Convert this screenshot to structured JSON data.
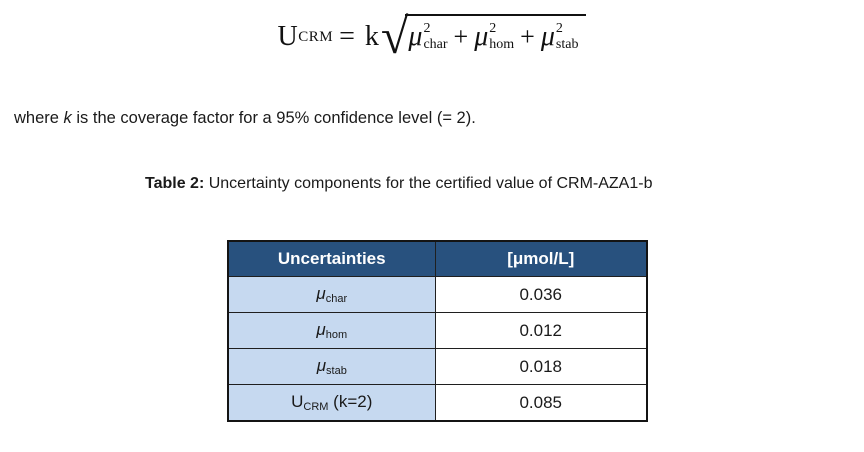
{
  "formula": {
    "lhs_base": "U",
    "lhs_sub": "CRM",
    "equals": "=",
    "coeff": "k",
    "radical_sign": "√",
    "operator": "+",
    "terms": [
      {
        "base": "μ",
        "sup": "2",
        "sub": "char"
      },
      {
        "base": "μ",
        "sup": "2",
        "sub": "hom"
      },
      {
        "base": "μ",
        "sup": "2",
        "sub": "stab"
      }
    ]
  },
  "paragraph": {
    "before_k": "where ",
    "k": "k",
    "after_k": " is the coverage factor for a 95% confidence level (= 2)."
  },
  "caption": {
    "label": "Table 2:",
    "text": " Uncertainty components for the certified value of CRM-AZA1-b"
  },
  "table": {
    "header": [
      "Uncertainties",
      "[μmol/L]"
    ],
    "rows": [
      {
        "label_base": "μ",
        "label_sub": "char",
        "label_suffix": "",
        "value": "0.036"
      },
      {
        "label_base": "μ",
        "label_sub": "hom",
        "label_suffix": "",
        "value": "0.012"
      },
      {
        "label_base": "μ",
        "label_sub": "stab",
        "label_suffix": "",
        "value": "0.018"
      },
      {
        "label_base": "U",
        "label_sub": "CRM",
        "label_suffix": " (k=2)",
        "value": "0.085"
      }
    ],
    "colors": {
      "header_bg": "#28517E",
      "header_text": "#FFFFFF",
      "label_bg": "#C6D9F0",
      "value_bg": "#FFFFFF",
      "border": "#1A1A1A"
    }
  }
}
